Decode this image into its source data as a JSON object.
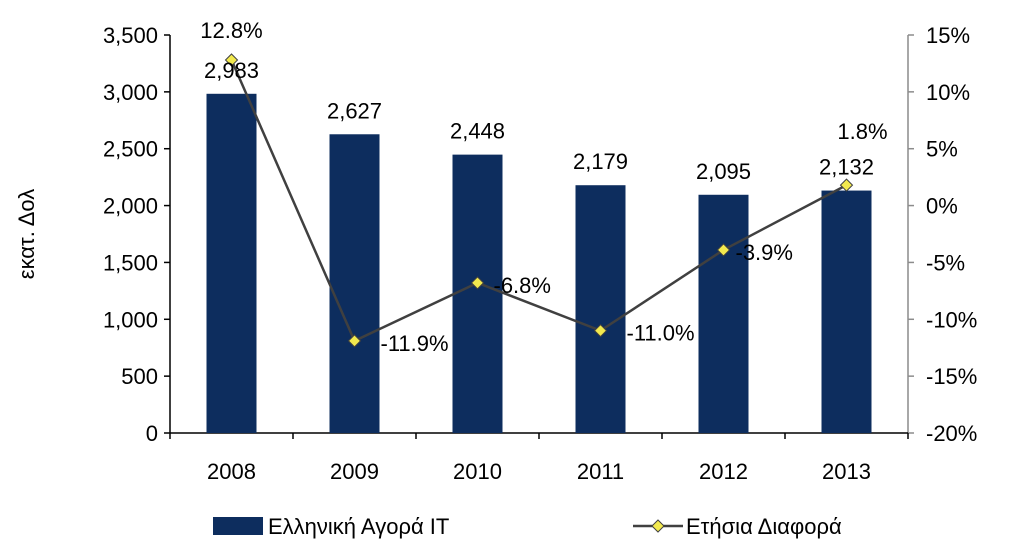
{
  "chart_data": {
    "type": "bar",
    "categories": [
      "2008",
      "2009",
      "2010",
      "2011",
      "2012",
      "2013"
    ],
    "ylabel": "εκατ. Δολ",
    "ylim": [
      0,
      3500
    ],
    "y_ticks": [
      "0",
      "500",
      "1,000",
      "1,500",
      "2,000",
      "2,500",
      "3,000",
      "3,500"
    ],
    "y2lim": [
      -20,
      15
    ],
    "y2_ticks": [
      "-20%",
      "-15%",
      "-10%",
      "-5%",
      "0%",
      "5%",
      "10%",
      "15%"
    ],
    "series": [
      {
        "name": "Ελληνική Αγορά IT",
        "kind": "bar",
        "axis": "left",
        "values": [
          2983,
          2627,
          2448,
          2179,
          2095,
          2132
        ],
        "labels": [
          "2,983",
          "2,627",
          "2,448",
          "2,179",
          "2,095",
          "2,132"
        ],
        "color": "#0d2d5e"
      },
      {
        "name": "Ετήσια Διαφορά",
        "kind": "line",
        "axis": "right",
        "values": [
          12.8,
          -11.9,
          -6.8,
          -11.0,
          -3.9,
          1.8
        ],
        "labels": [
          "12.8%",
          "-11.9%",
          "-6.8%",
          "-11.0%",
          "-3.9%",
          "1.8%"
        ],
        "line_color": "#404040",
        "marker_color": "#f2e94e"
      }
    ],
    "legend_position": "bottom",
    "grid": false
  }
}
